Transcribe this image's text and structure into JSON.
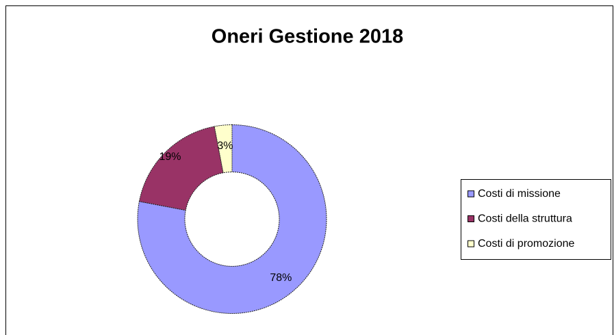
{
  "chart_data": {
    "type": "donut",
    "title": "Oneri Gestione 2018",
    "categories": [
      "Costi di missione",
      "Costi della struttura",
      "Costi di promozione"
    ],
    "values": [
      78,
      19,
      3
    ],
    "value_labels": [
      "78%",
      "19%",
      "3%"
    ],
    "colors": [
      "#9999ff",
      "#993366",
      "#ffffcc"
    ],
    "legend": "right"
  }
}
